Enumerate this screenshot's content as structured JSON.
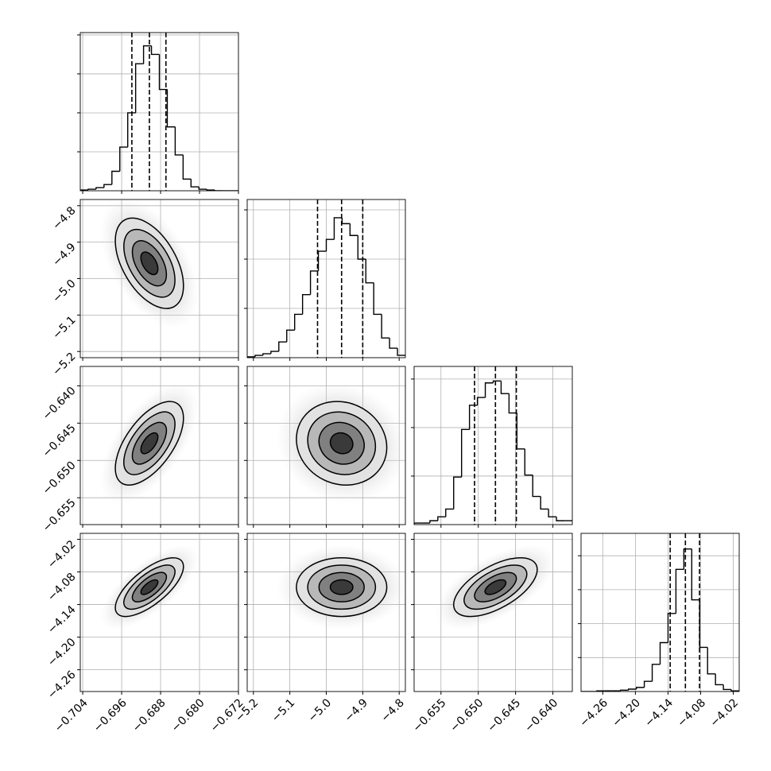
{
  "chart_data": {
    "type": "corner",
    "params": [
      {
        "xlim": [
          -0.7045,
          -0.672
        ],
        "ticks": [
          {
            "value": -0.704,
            "label": "−0.704"
          },
          {
            "value": -0.696,
            "label": "−0.696"
          },
          {
            "value": -0.688,
            "label": "−0.688"
          },
          {
            "value": -0.68,
            "label": "−0.680"
          },
          {
            "value": -0.672,
            "label": "−0.672"
          }
        ],
        "bins": [
          -0.7045,
          -0.702875,
          -0.70125,
          -0.699625,
          -0.698,
          -0.696375,
          -0.69475,
          -0.693125,
          -0.6915,
          -0.689875,
          -0.68825,
          -0.686625,
          -0.685,
          -0.683375,
          -0.68175,
          -0.680125,
          -0.6785,
          -0.676875,
          -0.67525,
          -0.673625,
          -0.672
        ],
        "counts": [
          10,
          20,
          40,
          80,
          250,
          560,
          1000,
          1630,
          1860,
          1750,
          1300,
          820,
          460,
          150,
          50,
          20,
          10,
          0,
          0,
          0
        ],
        "hist_ylim": [
          0,
          2030
        ],
        "hist_yticks": [
          500,
          1000,
          1500,
          2000
        ],
        "quantiles": [
          -0.6939,
          -0.6903,
          -0.6869
        ],
        "rho": []
      },
      {
        "xlim": [
          -5.217,
          -4.783
        ],
        "ticks": [
          {
            "value": -5.2,
            "label": "−5.2"
          },
          {
            "value": -5.1,
            "label": "−5.1"
          },
          {
            "value": -5.0,
            "label": "−5.0"
          },
          {
            "value": -4.9,
            "label": "−4.9"
          },
          {
            "value": -4.8,
            "label": "−4.8"
          }
        ],
        "bins": [
          -5.217,
          -5.1953,
          -5.1736,
          -5.1519,
          -5.1302,
          -5.1085,
          -5.0868,
          -5.0651,
          -5.0434,
          -5.0217,
          -5.0,
          -4.9783,
          -4.9566,
          -4.9349,
          -4.9132,
          -4.8915,
          -4.8698,
          -4.8481,
          -4.8264,
          -4.8047,
          -4.783
        ],
        "counts": [
          8,
          24,
          40,
          64,
          160,
          280,
          440,
          640,
          880,
          1080,
          1200,
          1420,
          1360,
          1240,
          1000,
          760,
          440,
          200,
          96,
          24
        ],
        "hist_ylim": [
          0,
          1605
        ],
        "hist_yticks": [
          500,
          1000,
          1500
        ],
        "quantiles": [
          -5.024,
          -4.958,
          -4.9
        ],
        "rho": [
          -0.5
        ]
      },
      {
        "xlim": [
          -0.6586,
          -0.6374
        ],
        "ticks": [
          {
            "value": -0.655,
            "label": "−0.655"
          },
          {
            "value": -0.65,
            "label": "−0.650"
          },
          {
            "value": -0.645,
            "label": "−0.645"
          },
          {
            "value": -0.64,
            "label": "−0.640"
          }
        ],
        "bins": [
          -0.6586,
          -0.65754,
          -0.65648,
          -0.65542,
          -0.65436,
          -0.6533,
          -0.65224,
          -0.65118,
          -0.65012,
          -0.64906,
          -0.648,
          -0.64694,
          -0.64588,
          -0.64482,
          -0.64376,
          -0.6427,
          -0.64164,
          -0.64058,
          -0.63952,
          -0.63846,
          -0.6374
        ],
        "counts": [
          16,
          16,
          40,
          80,
          160,
          490,
          980,
          1230,
          1310,
          1460,
          1480,
          1350,
          1150,
          780,
          510,
          290,
          160,
          80,
          40,
          40
        ],
        "hist_ylim": [
          0,
          1630
        ],
        "hist_yticks": [
          500,
          1000,
          1500
        ],
        "quantiles": [
          -0.6505,
          -0.6477,
          -0.6449
        ],
        "rho": [
          0.6,
          -0.1
        ]
      },
      {
        "xlim": [
          -4.3,
          -4.009
        ],
        "ticks": [
          {
            "value": -4.26,
            "label": "−4.26"
          },
          {
            "value": -4.2,
            "label": "−4.20"
          },
          {
            "value": -4.14,
            "label": "−4.14"
          },
          {
            "value": -4.08,
            "label": "−4.08"
          },
          {
            "value": -4.02,
            "label": "−4.02"
          }
        ],
        "bins": [
          -4.3,
          -4.28545,
          -4.2709,
          -4.25635,
          -4.2418,
          -4.22725,
          -4.2127,
          -4.19815,
          -4.1836,
          -4.16905,
          -4.1545,
          -4.13995,
          -4.1254,
          -4.11085,
          -4.0963,
          -4.08175,
          -4.0672,
          -4.05265,
          -4.0381,
          -4.02355,
          -4.009
        ],
        "counts": [
          0,
          0,
          10,
          10,
          10,
          20,
          35,
          60,
          150,
          400,
          720,
          1150,
          1800,
          2100,
          1350,
          650,
          260,
          100,
          30,
          10
        ],
        "hist_ylim": [
          0,
          2330
        ],
        "hist_yticks": [
          500,
          1000,
          1500,
          2000
        ],
        "quantiles": [
          -4.136,
          -4.108,
          -4.082
        ],
        "rho": [
          0.7,
          0,
          0.6
        ]
      }
    ],
    "grid": true,
    "color": "#000000"
  }
}
